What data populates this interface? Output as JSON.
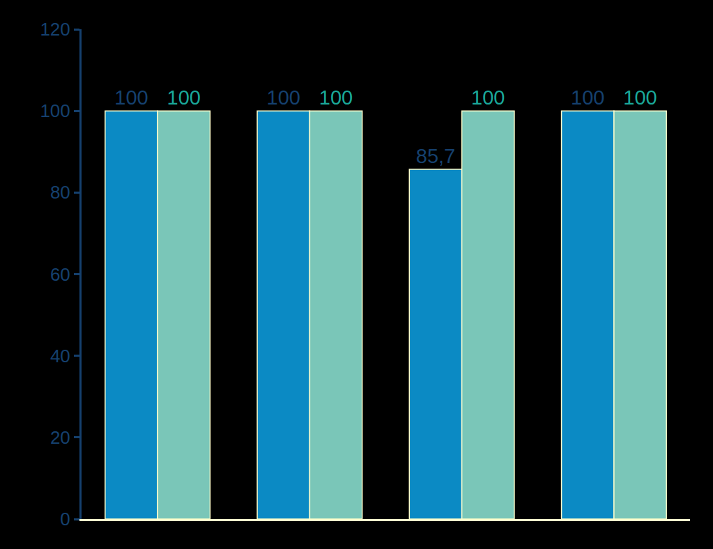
{
  "chart_data": {
    "type": "bar",
    "categories": [
      null,
      null,
      null,
      null
    ],
    "series": [
      {
        "color": "#0b8ac4",
        "values": [
          100,
          100,
          85.7,
          100
        ],
        "value_labels": [
          "100",
          "100",
          "85,7",
          "100"
        ]
      },
      {
        "color": "#7ac6b8",
        "values": [
          100,
          100,
          100,
          100
        ]
      }
    ],
    "ylim": [
      0,
      120
    ],
    "yticks": [
      0,
      20,
      40,
      60,
      80,
      100,
      120
    ],
    "grid": false,
    "data_labels": true,
    "tick_labels": "y"
  }
}
